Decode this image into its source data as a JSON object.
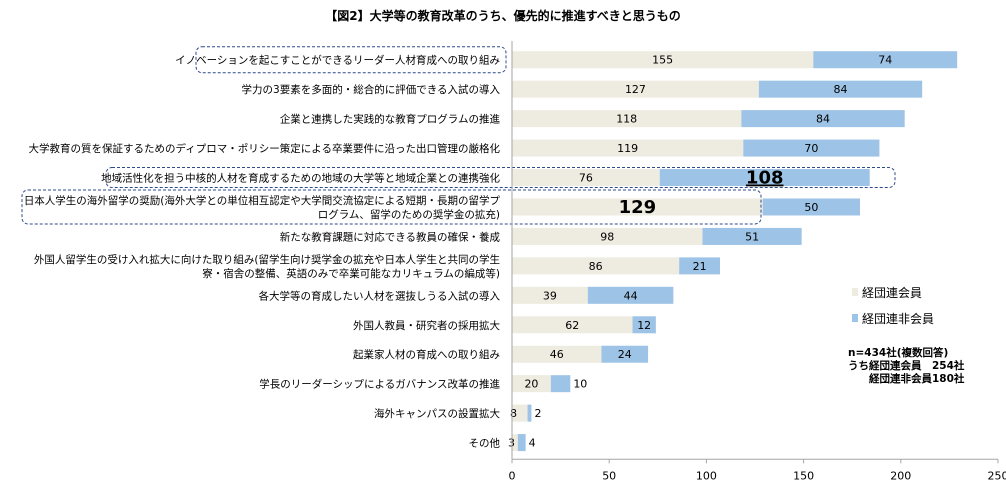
{
  "chart_data": {
    "type": "bar",
    "orientation": "horizontal",
    "stacked": true,
    "title": "【図2】大学等の教育改革のうち、優先的に推進すべきと思うもの",
    "categories": [
      [
        "イノベーションを起こすことができるリーダー人材育成への取り組み"
      ],
      [
        "学力の3要素を多面的・総合的に評価できる入試の導入"
      ],
      [
        "企業と連携した実践的な教育プログラムの推進"
      ],
      [
        "大学教育の質を保証するためのディプロマ・ポリシー策定による卒業要件に沿った出口管理の厳格化"
      ],
      [
        "地域活性化を担う中核的人材を育成するための地域の大学等と地域企業との連携強化"
      ],
      [
        "日本人学生の海外留学の奨励(海外大学との単位相互認定や大学間交流協定による短期・長期の留学プ",
        "ログラム、留学のための奨学金の拡充)"
      ],
      [
        "新たな教育課題に対応できる教員の確保・養成"
      ],
      [
        "外国人留学生の受け入れ拡大に向けた取り組み(留学生向け奨学金の拡充や日本人学生と共同の学生",
        "寮・宿舎の整備、英語のみで卒業可能なカリキュラムの編成等)"
      ],
      [
        "各大学等の育成したい人材を選抜しうる入試の導入"
      ],
      [
        "外国人教員・研究者の採用拡大"
      ],
      [
        "起業家人材の育成への取り組み"
      ],
      [
        "学長のリーダーシップによるガバナンス改革の推進"
      ],
      [
        "海外キャンパスの設置拡大"
      ],
      [
        "その他"
      ]
    ],
    "series": [
      {
        "name": "経団連会員",
        "values": [
          155,
          127,
          118,
          119,
          76,
          129,
          98,
          86,
          39,
          62,
          46,
          20,
          8,
          3
        ]
      },
      {
        "name": "経団連非会員",
        "values": [
          74,
          84,
          84,
          70,
          108,
          50,
          51,
          21,
          44,
          12,
          24,
          10,
          2,
          4
        ]
      }
    ],
    "emphasized": [
      {
        "category_index": 0,
        "series_index": null
      },
      {
        "category_index": 4,
        "series_index": 1
      },
      {
        "category_index": 5,
        "series_index": 0
      }
    ],
    "xlim": [
      0,
      250
    ],
    "xticks": [
      "0",
      "50",
      "100",
      "150",
      "200",
      "250"
    ],
    "legend_position": "right",
    "colors": {
      "member": "#EEEBE0",
      "non_member": "#9DC3E6",
      "axis": "#A6A6A6",
      "highlight_border": "#2E4A8B"
    },
    "notes": [
      "n=434社(複数回答)",
      "うち経団連会員　254社",
      "　　経団連非会員180社"
    ],
    "xlabel": "",
    "ylabel": "",
    "grid": false
  }
}
